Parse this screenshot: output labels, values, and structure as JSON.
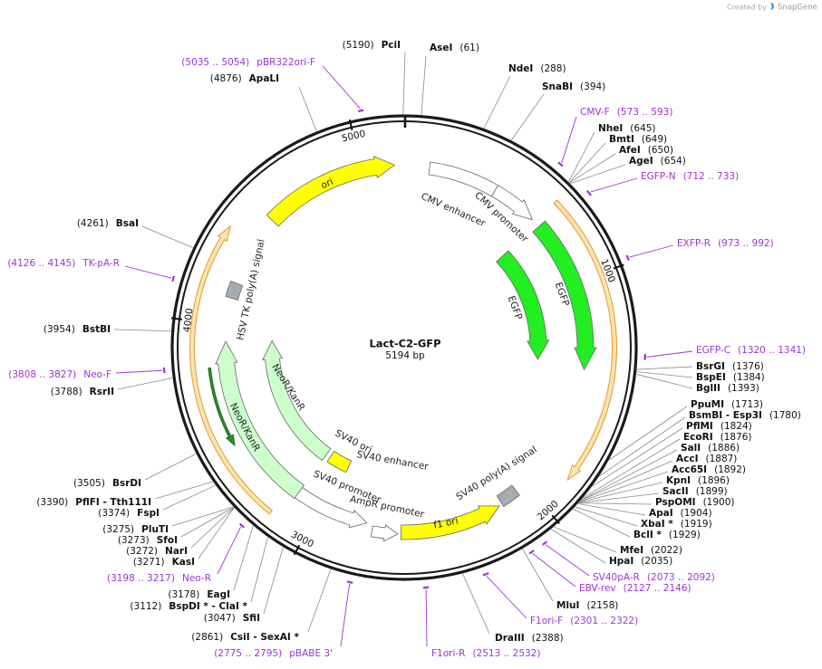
{
  "header": {
    "created_by": "Created by",
    "brand": "SnapGene"
  },
  "plasmid": {
    "name": "Lact-C2-GFP",
    "length": {
      "value": 5194,
      "label": "5194 bp"
    }
  },
  "scale_ticks": [
    1000,
    2000,
    3000,
    4000,
    5000
  ],
  "features": [
    "CMV enhancer",
    "CMV promoter",
    "EGFP",
    "EGFP",
    "ori",
    "HSV TK poly(A) signal",
    "NeoR/KanR",
    "NeoR/KanR",
    "SV40 ori",
    "SV40 enhancer",
    "SV40 promoter",
    "AmpR promoter",
    "f1 ori",
    "SV40 poly(A) signal"
  ],
  "enzymes": [
    {
      "name": "AseI",
      "position": {
        "value": 61,
        "label": "(61)"
      }
    },
    {
      "name": "NdeI",
      "position": {
        "value": 288,
        "label": "(288)"
      }
    },
    {
      "name": "SnaBI",
      "position": {
        "value": 394,
        "label": "(394)"
      }
    },
    {
      "name": "NheI",
      "position": {
        "value": 645,
        "label": "(645)"
      }
    },
    {
      "name": "BmtI",
      "position": {
        "value": 649,
        "label": "(649)"
      }
    },
    {
      "name": "AfeI",
      "position": {
        "value": 650,
        "label": "(650)"
      }
    },
    {
      "name": "AgeI",
      "position": {
        "value": 654,
        "label": "(654)"
      }
    },
    {
      "name": "BsrGI",
      "position": {
        "value": 1376,
        "label": "(1376)"
      }
    },
    {
      "name": "BspEI",
      "position": {
        "value": 1384,
        "label": "(1384)"
      }
    },
    {
      "name": "BglII",
      "position": {
        "value": 1393,
        "label": "(1393)"
      }
    },
    {
      "name": "PpuMI",
      "position": {
        "value": 1713,
        "label": "(1713)"
      }
    },
    {
      "name": "BsmBI - Esp3I",
      "position": {
        "value": 1780,
        "label": "(1780)"
      }
    },
    {
      "name": "PflMI",
      "position": {
        "value": 1824,
        "label": "(1824)"
      }
    },
    {
      "name": "EcoRI",
      "position": {
        "value": 1876,
        "label": "(1876)"
      }
    },
    {
      "name": "SalI",
      "position": {
        "value": 1886,
        "label": "(1886)"
      }
    },
    {
      "name": "AccI",
      "position": {
        "value": 1887,
        "label": "(1887)"
      }
    },
    {
      "name": "Acc65I",
      "position": {
        "value": 1892,
        "label": "(1892)"
      }
    },
    {
      "name": "KpnI",
      "position": {
        "value": 1896,
        "label": "(1896)"
      }
    },
    {
      "name": "SacII",
      "position": {
        "value": 1899,
        "label": "(1899)"
      }
    },
    {
      "name": "PspOMI",
      "position": {
        "value": 1900,
        "label": "(1900)"
      }
    },
    {
      "name": "ApaI",
      "position": {
        "value": 1904,
        "label": "(1904)"
      }
    },
    {
      "name": "XbaI *",
      "position": {
        "value": 1919,
        "label": "(1919)"
      }
    },
    {
      "name": "BclI *",
      "position": {
        "value": 1929,
        "label": "(1929)"
      }
    },
    {
      "name": "MfeI",
      "position": {
        "value": 2022,
        "label": "(2022)"
      }
    },
    {
      "name": "HpaI",
      "position": {
        "value": 2035,
        "label": "(2035)"
      }
    },
    {
      "name": "MluI",
      "position": {
        "value": 2158,
        "label": "(2158)"
      }
    },
    {
      "name": "DraIII",
      "position": {
        "value": 2388,
        "label": "(2388)"
      }
    },
    {
      "name": "CsiI - SexAI *",
      "position": {
        "value": 2861,
        "label": "(2861)"
      }
    },
    {
      "name": "SfiI",
      "position": {
        "value": 3047,
        "label": "(3047)"
      }
    },
    {
      "name": "BspDI * - ClaI *",
      "position": {
        "value": 3112,
        "label": "(3112)"
      }
    },
    {
      "name": "EagI",
      "position": {
        "value": 3178,
        "label": "(3178)"
      }
    },
    {
      "name": "KasI",
      "position": {
        "value": 3271,
        "label": "(3271)"
      }
    },
    {
      "name": "NarI",
      "position": {
        "value": 3272,
        "label": "(3272)"
      }
    },
    {
      "name": "SfoI",
      "position": {
        "value": 3273,
        "label": "(3273)"
      }
    },
    {
      "name": "PluTI",
      "position": {
        "value": 3275,
        "label": "(3275)"
      }
    },
    {
      "name": "FspI",
      "position": {
        "value": 3374,
        "label": "(3374)"
      }
    },
    {
      "name": "PflFI - Tth111I",
      "position": {
        "value": 3390,
        "label": "(3390)"
      }
    },
    {
      "name": "BsrDI",
      "position": {
        "value": 3505,
        "label": "(3505)"
      }
    },
    {
      "name": "RsrII",
      "position": {
        "value": 3788,
        "label": "(3788)"
      }
    },
    {
      "name": "BstBI",
      "position": {
        "value": 3954,
        "label": "(3954)"
      }
    },
    {
      "name": "BsaI",
      "position": {
        "value": 4261,
        "label": "(4261)"
      }
    },
    {
      "name": "ApaLI",
      "position": {
        "value": 4876,
        "label": "(4876)"
      }
    },
    {
      "name": "PciI",
      "position": {
        "value": 5190,
        "label": "(5190)"
      }
    }
  ],
  "primers": [
    {
      "name": "CMV-F",
      "range": {
        "start": 573,
        "end": 593,
        "label": "(573 .. 593)"
      }
    },
    {
      "name": "EGFP-N",
      "range": {
        "start": 712,
        "end": 733,
        "label": "(712 .. 733)"
      }
    },
    {
      "name": "EXFP-R",
      "range": {
        "start": 973,
        "end": 992,
        "label": "(973 .. 992)"
      }
    },
    {
      "name": "EGFP-C",
      "range": {
        "start": 1320,
        "end": 1341,
        "label": "(1320 .. 1341)"
      }
    },
    {
      "name": "SV40pA-R",
      "range": {
        "start": 2073,
        "end": 2092,
        "label": "(2073 .. 2092)"
      }
    },
    {
      "name": "EBV-rev",
      "range": {
        "start": 2127,
        "end": 2146,
        "label": "(2127 .. 2146)"
      }
    },
    {
      "name": "F1ori-F",
      "range": {
        "start": 2301,
        "end": 2322,
        "label": "(2301 .. 2322)"
      }
    },
    {
      "name": "F1ori-R",
      "range": {
        "start": 2513,
        "end": 2532,
        "label": "(2513 .. 2532)"
      }
    },
    {
      "name": "pBABE 3'",
      "range": {
        "start": 2775,
        "end": 2795,
        "label": "(2775 .. 2795)"
      }
    },
    {
      "name": "Neo-R",
      "range": {
        "start": 3198,
        "end": 3217,
        "label": "(3198 .. 3217)"
      }
    },
    {
      "name": "Neo-F",
      "range": {
        "start": 3808,
        "end": 3827,
        "label": "(3808 .. 3827)"
      }
    },
    {
      "name": "TK-pA-R",
      "range": {
        "start": 4126,
        "end": 4145,
        "label": "(4126 .. 4145)"
      }
    },
    {
      "name": "pBR322ori-F",
      "range": {
        "start": 5035,
        "end": 5054,
        "label": "(5035 .. 5054)"
      }
    }
  ]
}
